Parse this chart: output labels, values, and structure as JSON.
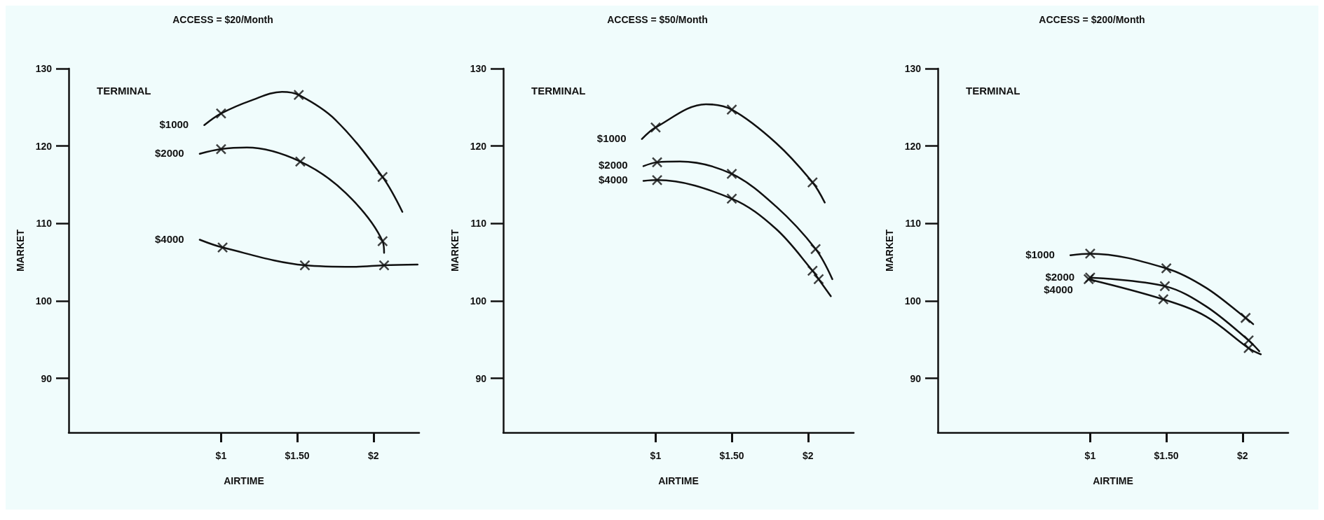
{
  "chart_data": [
    {
      "type": "line",
      "title": "ACCESS = $20/Month",
      "xlabel": "AIRTIME",
      "ylabel": "MARKET",
      "legend_title": "TERMINAL",
      "xlim": [
        0,
        2.3
      ],
      "ylim": [
        83,
        130
      ],
      "xticks": [
        {
          "value": 1,
          "label": "$1"
        },
        {
          "value": 1.5,
          "label": "$1.50"
        },
        {
          "value": 2,
          "label": "$2"
        }
      ],
      "yticks": [
        90,
        100,
        110,
        120,
        130
      ],
      "grid": false,
      "legend": false,
      "line_style": "solid",
      "marker": "cross",
      "series": [
        {
          "name": "$1000",
          "color": "#111111",
          "marker": "none",
          "x": [
            0.89,
            1.0,
            1.2,
            1.4,
            1.51,
            1.75,
            2.06,
            2.19
          ],
          "values": [
            122.7,
            124.2,
            125.9,
            127.0,
            126.6,
            123.4,
            116.0,
            111.5
          ]
        },
        {
          "type": "scatter",
          "color": "#111111",
          "x": [
            1.0,
            1.51,
            2.06
          ],
          "values": [
            124.2,
            126.6,
            116.0
          ]
        },
        {
          "name": "$2000",
          "color": "#111111",
          "marker": "none",
          "x": [
            0.86,
            1.0,
            1.17,
            1.52,
            1.82,
            2.06,
            2.07
          ],
          "values": [
            119.0,
            119.6,
            119.8,
            118.0,
            113.9,
            107.7,
            106.2
          ]
        },
        {
          "type": "scatter",
          "color": "#111111",
          "x": [
            1.0,
            1.52,
            2.06
          ],
          "values": [
            119.6,
            118.0,
            107.7
          ]
        },
        {
          "name": "$4000",
          "color": "#111111",
          "marker": "none",
          "x": [
            0.86,
            1.01,
            1.55,
            1.87,
            2.07,
            2.29
          ],
          "values": [
            107.9,
            106.9,
            104.6,
            104.4,
            104.6,
            104.7
          ]
        },
        {
          "type": "scatter",
          "color": "#111111",
          "x": [
            1.01,
            1.55,
            2.07
          ],
          "values": [
            106.9,
            104.6,
            104.6
          ]
        }
      ]
    },
    {
      "type": "line",
      "title": "ACCESS = $50/Month",
      "xlabel": "AIRTIME",
      "ylabel": "MARKET",
      "legend_title": "TERMINAL",
      "xlim": [
        0,
        2.3
      ],
      "ylim": [
        83,
        130
      ],
      "xticks": [
        {
          "value": 1,
          "label": "$1"
        },
        {
          "value": 1.5,
          "label": "$1.50"
        },
        {
          "value": 2,
          "label": "$2"
        }
      ],
      "yticks": [
        90,
        100,
        110,
        120,
        130
      ],
      "grid": false,
      "legend": false,
      "line_style": "solid",
      "marker": "cross",
      "series": [
        {
          "name": "$1000",
          "color": "#111111",
          "marker": "none",
          "x": [
            0.91,
            1.0,
            1.33,
            1.5,
            1.79,
            2.03,
            2.11
          ],
          "values": [
            120.9,
            122.4,
            125.4,
            124.7,
            120.4,
            115.3,
            112.7
          ]
        },
        {
          "type": "scatter",
          "color": "#111111",
          "x": [
            1.0,
            1.5,
            2.03
          ],
          "values": [
            122.4,
            124.7,
            115.3
          ]
        },
        {
          "name": "$2000",
          "color": "#111111",
          "marker": "none",
          "x": [
            0.92,
            1.01,
            1.16,
            1.5,
            1.79,
            2.05,
            2.16
          ],
          "values": [
            117.4,
            117.9,
            118.0,
            116.4,
            112.2,
            106.7,
            102.8
          ]
        },
        {
          "type": "scatter",
          "color": "#111111",
          "x": [
            1.01,
            1.5,
            2.05
          ],
          "values": [
            117.9,
            116.4,
            106.7
          ]
        },
        {
          "name": "$4000",
          "color": "#111111",
          "marker": "none",
          "x": [
            0.92,
            1.01,
            1.5,
            1.79,
            2.03,
            2.07,
            2.15
          ],
          "values": [
            115.5,
            115.6,
            113.2,
            109.3,
            103.9,
            102.8,
            100.6
          ]
        },
        {
          "type": "scatter",
          "color": "#111111",
          "x": [
            1.01,
            1.5,
            2.03,
            2.07
          ],
          "values": [
            115.6,
            113.2,
            103.9,
            102.8
          ]
        }
      ]
    },
    {
      "type": "line",
      "title": "ACCESS = $200/Month",
      "xlabel": "AIRTIME",
      "ylabel": "MARKET",
      "legend_title": "TERMINAL",
      "xlim": [
        0,
        2.3
      ],
      "ylim": [
        83,
        130
      ],
      "xticks": [
        {
          "value": 1,
          "label": "$1"
        },
        {
          "value": 1.5,
          "label": "$1.50"
        },
        {
          "value": 2,
          "label": "$2"
        }
      ],
      "yticks": [
        90,
        100,
        110,
        120,
        130
      ],
      "grid": false,
      "legend": false,
      "line_style": "solid",
      "marker": "cross",
      "series": [
        {
          "name": "$1000",
          "color": "#111111",
          "marker": "none",
          "x": [
            0.87,
            1.0,
            1.5,
            1.76,
            2.02,
            2.07
          ],
          "values": [
            105.9,
            106.1,
            104.2,
            101.7,
            97.8,
            97.0
          ]
        },
        {
          "type": "scatter",
          "color": "#111111",
          "x": [
            1.0,
            1.5,
            2.02
          ],
          "values": [
            106.1,
            104.2,
            97.8
          ]
        },
        {
          "name": "$2000",
          "color": "#111111",
          "marker": "none",
          "x": [
            1.0,
            1.49,
            1.76,
            2.04,
            2.11
          ],
          "values": [
            103.0,
            101.9,
            99.3,
            94.9,
            93.5
          ]
        },
        {
          "type": "scatter",
          "color": "#111111",
          "x": [
            1.0,
            1.49,
            2.04
          ],
          "values": [
            103.0,
            101.9,
            94.9
          ]
        },
        {
          "name": "$4000",
          "color": "#111111",
          "marker": "none",
          "x": [
            0.99,
            1.48,
            1.76,
            2.04,
            2.12
          ],
          "values": [
            102.8,
            100.2,
            98.0,
            93.9,
            93.1
          ]
        },
        {
          "type": "scatter",
          "color": "#111111",
          "x": [
            0.99,
            1.48,
            2.04
          ],
          "values": [
            102.8,
            100.2,
            93.9
          ]
        }
      ]
    }
  ]
}
